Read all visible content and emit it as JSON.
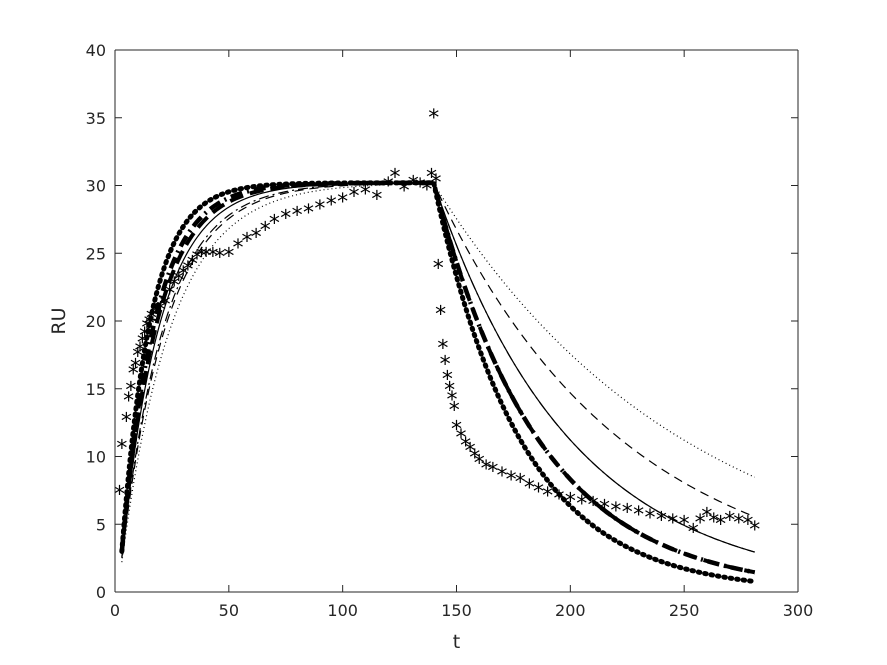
{
  "chart_data": {
    "type": "line",
    "title": "",
    "xlabel": "t",
    "ylabel": "RU",
    "xlim": [
      0,
      300
    ],
    "ylim": [
      0,
      40
    ],
    "xticks": [
      0,
      50,
      100,
      150,
      200,
      250,
      300
    ],
    "yticks": [
      0,
      5,
      10,
      15,
      20,
      25,
      30,
      35,
      40
    ],
    "grid": false,
    "legend": "none",
    "marker_glyph": "*",
    "colors": {
      "lines": "#000000",
      "axes": "#262626",
      "background": "#ffffff"
    },
    "series": [
      {
        "style": "stars",
        "x": [
          2,
          3,
          5,
          6,
          7,
          8,
          9,
          10,
          11,
          12,
          13,
          14,
          15,
          16,
          18,
          20,
          22,
          24,
          26,
          28,
          30,
          32,
          34,
          36,
          38,
          40,
          43,
          46,
          50,
          54,
          58,
          62,
          66,
          70,
          75,
          80,
          85,
          90,
          95,
          100,
          105,
          110,
          115,
          120,
          123,
          127,
          131,
          134,
          137,
          139,
          140,
          141,
          142,
          143,
          144,
          145,
          146,
          147,
          148,
          149,
          150,
          152,
          154,
          156,
          158,
          160,
          163,
          166,
          170,
          174,
          178,
          182,
          186,
          190,
          195,
          200,
          205,
          210,
          215,
          220,
          225,
          230,
          235,
          240,
          245,
          250,
          254,
          257,
          260,
          263,
          266,
          270,
          274,
          278,
          281
        ],
        "y": [
          7.4,
          10.8,
          12.8,
          14.3,
          15.1,
          16.3,
          16.8,
          17.6,
          18.0,
          18.6,
          19.1,
          19.7,
          20.0,
          20.4,
          20.8,
          21.0,
          21.4,
          22.2,
          22.8,
          23.2,
          23.6,
          24.0,
          24.4,
          24.8,
          25.0,
          25.0,
          25.0,
          24.9,
          25.0,
          25.6,
          26.1,
          26.4,
          26.9,
          27.4,
          27.8,
          28.0,
          28.2,
          28.5,
          28.8,
          29.0,
          29.4,
          29.6,
          29.2,
          30.2,
          30.8,
          29.8,
          30.3,
          30.1,
          29.9,
          30.8,
          35.2,
          30.4,
          24.1,
          20.7,
          18.2,
          17.0,
          15.9,
          15.1,
          14.4,
          13.6,
          12.2,
          11.6,
          11.0,
          10.6,
          10.1,
          9.7,
          9.3,
          9.1,
          8.8,
          8.5,
          8.3,
          7.9,
          7.6,
          7.3,
          7.1,
          6.9,
          6.7,
          6.6,
          6.4,
          6.2,
          6.1,
          5.9,
          5.7,
          5.5,
          5.3,
          5.2,
          4.6,
          5.3,
          5.8,
          5.4,
          5.2,
          5.5,
          5.3,
          5.2,
          4.8
        ]
      },
      {
        "style": "heavy-dotted",
        "kon": 0.079,
        "koff": 0.026,
        "rmax": 30.2,
        "t0": 3,
        "y0": 3.0,
        "tswitch": 140,
        "tend": 281
      },
      {
        "style": "heavy-dash-dot",
        "kon": 0.068,
        "koff": 0.0215,
        "rmax": 30.2,
        "t0": 3,
        "y0": 3.0,
        "tswitch": 140,
        "tend": 281
      },
      {
        "style": "heavy-dashed",
        "kon": 0.063,
        "koff": 0.0215,
        "rmax": 30.2,
        "t0": 3,
        "y0": 3.0,
        "tswitch": 140,
        "tend": 281
      },
      {
        "style": "solid",
        "kon": 0.058,
        "koff": 0.0165,
        "rmax": 30.2,
        "t0": 3,
        "y0": 2.8,
        "tswitch": 140,
        "tend": 281
      },
      {
        "style": "thin-dash-dot",
        "kon": 0.052,
        "koff": 0.0165,
        "rmax": 30.2,
        "t0": 3,
        "y0": 2.6,
        "tswitch": 140,
        "tend": 281
      },
      {
        "style": "thin-dashed",
        "kon": 0.05,
        "koff": 0.012,
        "rmax": 30.2,
        "t0": 3,
        "y0": 2.5,
        "tswitch": 140,
        "tend": 281
      },
      {
        "style": "thin-dotted",
        "kon": 0.045,
        "koff": 0.009,
        "rmax": 30.2,
        "t0": 3,
        "y0": 2.2,
        "tswitch": 140,
        "tend": 281
      }
    ]
  }
}
